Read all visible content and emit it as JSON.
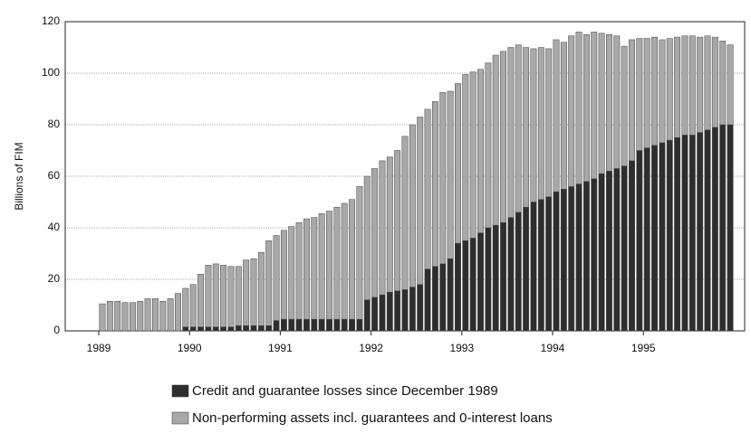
{
  "chart_data": {
    "type": "stacked-bar",
    "y_label": "Billions of FIM",
    "categories": [
      "1989",
      null,
      null,
      null,
      null,
      null,
      null,
      null,
      null,
      null,
      null,
      null,
      "1990",
      null,
      null,
      null,
      null,
      null,
      null,
      null,
      null,
      null,
      null,
      null,
      "1991",
      null,
      null,
      null,
      null,
      null,
      null,
      null,
      null,
      null,
      null,
      null,
      "1992",
      null,
      null,
      null,
      null,
      null,
      null,
      null,
      null,
      null,
      null,
      null,
      "1993",
      null,
      null,
      null,
      null,
      null,
      null,
      null,
      null,
      null,
      null,
      null,
      "1994",
      null,
      null,
      null,
      null,
      null,
      null,
      null,
      null,
      null,
      null,
      null,
      "1995",
      null,
      null,
      null,
      null,
      null,
      null,
      null,
      null,
      null,
      null,
      null
    ],
    "series": [
      {
        "name": "Credit and guarantee losses since December 1989",
        "color": "#2e2e2e",
        "values": [
          0,
          0,
          0,
          0,
          0,
          0,
          0,
          0,
          0,
          0,
          0,
          1.5,
          1.5,
          1.5,
          1.5,
          1.5,
          1.5,
          1.5,
          2,
          2,
          2,
          2,
          2,
          4,
          4.5,
          4.5,
          4.5,
          4.5,
          4.5,
          4.5,
          4.5,
          4.5,
          4.5,
          4.5,
          4.5,
          12,
          13,
          14,
          15,
          15.5,
          16,
          17,
          18,
          24,
          25,
          26,
          28,
          34,
          35,
          36,
          38,
          40,
          41,
          42,
          44,
          46,
          48,
          50,
          51,
          52,
          54,
          55,
          56,
          57,
          58,
          59,
          61,
          62,
          63,
          64,
          66,
          70,
          71,
          72,
          73,
          74,
          75,
          76,
          76,
          77,
          78,
          79,
          80,
          80
        ]
      },
      {
        "name": "Non-performing assets incl. guarantees and 0-interest loans",
        "color": "#a8a8a8",
        "values": [
          10.5,
          11.5,
          11.5,
          11,
          11,
          11.5,
          12.5,
          12.5,
          11.5,
          12.5,
          14.5,
          15,
          16.5,
          20.5,
          24,
          24.5,
          24,
          23.5,
          23,
          25.5,
          26,
          28.5,
          33,
          33,
          34.5,
          36,
          37.5,
          39,
          39.5,
          41,
          42,
          43.5,
          45,
          46.5,
          51.5,
          48,
          50,
          52,
          52.5,
          54.5,
          59.5,
          63,
          65,
          62,
          64,
          66.5,
          65,
          62,
          64.5,
          64.5,
          63.5,
          64,
          66,
          66.5,
          66,
          65,
          62,
          59.5,
          59,
          57.5,
          59,
          57,
          58.5,
          59,
          57,
          57,
          54.5,
          53,
          51.5,
          46.5,
          47,
          43.5,
          42.5,
          42,
          40,
          39.5,
          39,
          38.5,
          38.5,
          37,
          36.5,
          35,
          32.5,
          31
        ]
      }
    ],
    "ylim": [
      0,
      120
    ],
    "yticks": [
      0,
      20,
      40,
      60,
      80,
      100,
      120
    ],
    "grid": true
  }
}
